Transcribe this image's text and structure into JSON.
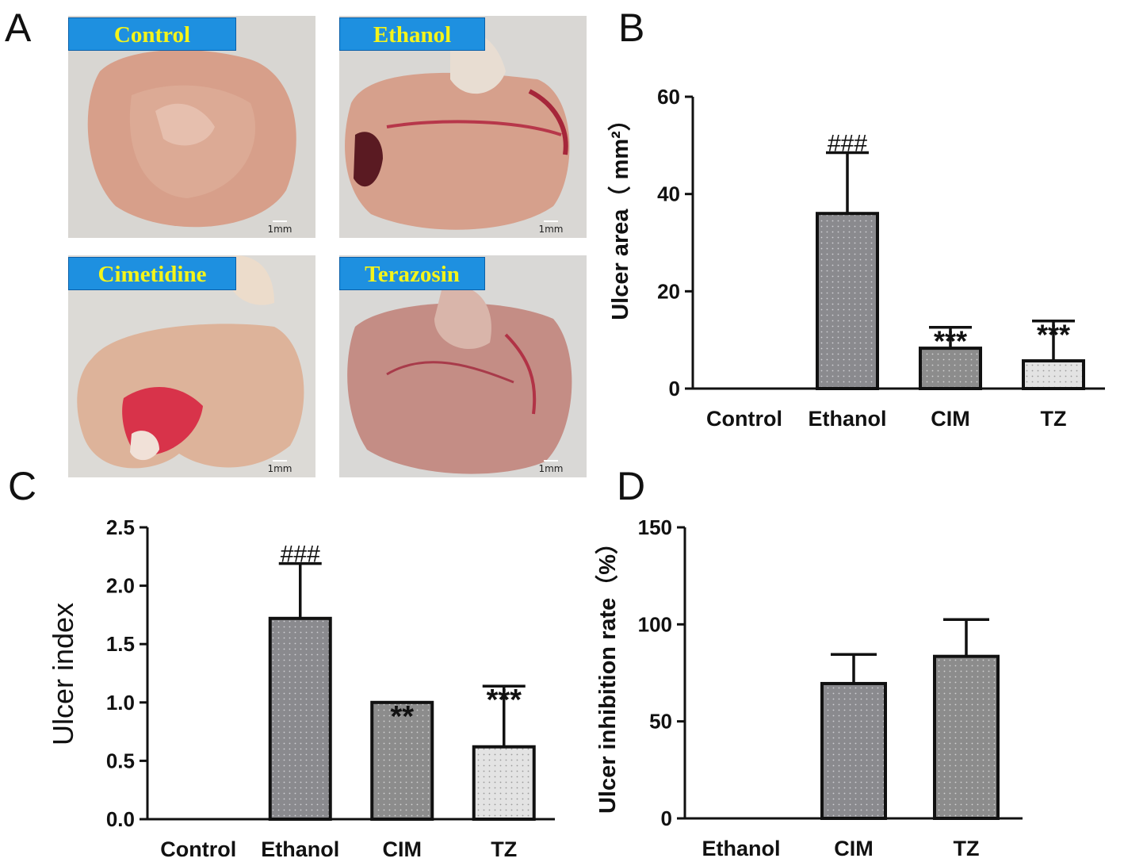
{
  "panels": {
    "a": "A",
    "b": "B",
    "c": "C",
    "d": "D"
  },
  "photos": [
    {
      "label": "Control",
      "scale": "1mm"
    },
    {
      "label": "Ethanol",
      "scale": "1mm"
    },
    {
      "label": "Cimetidine",
      "scale": "1mm"
    },
    {
      "label": "Terazosin",
      "scale": "1mm"
    }
  ],
  "colors": {
    "bar_dark": "#8a8a8e",
    "bar_mid": "#8c8c8c",
    "bar_light": "#e3e3e3",
    "axis": "#111111",
    "label_bg": "#1e90e0",
    "label_text": "#f4f41a"
  },
  "chart_data": [
    {
      "id": "B",
      "type": "bar",
      "title": "",
      "categories": [
        "Control",
        "Ethanol",
        "CIM",
        "TZ"
      ],
      "values": [
        0,
        36,
        8.3,
        5.7
      ],
      "errors": [
        0,
        12.5,
        4.3,
        8.2
      ],
      "annotations": [
        "",
        "###",
        "***",
        "***"
      ],
      "ylabel": "Ulcer area（ mm²）",
      "xlabel": "",
      "ylim": [
        0,
        60
      ],
      "yticks": [
        "0",
        "20",
        "40",
        "60"
      ],
      "tick_values": [
        0,
        20,
        40,
        60
      ]
    },
    {
      "id": "C",
      "type": "bar",
      "title": "",
      "categories": [
        "Control",
        "Ethanol",
        "CIM",
        "TZ"
      ],
      "values": [
        0,
        1.72,
        1.0,
        0.62
      ],
      "errors": [
        0,
        0.47,
        0,
        0.52
      ],
      "annotations": [
        "",
        "###",
        "**",
        "***"
      ],
      "ylabel": "Ulcer index",
      "xlabel": "",
      "ylim": [
        0,
        2.5
      ],
      "yticks": [
        "0.0",
        "0.5",
        "1.0",
        "1.5",
        "2.0",
        "2.5"
      ],
      "tick_values": [
        0,
        0.5,
        1,
        1.5,
        2,
        2.5
      ]
    },
    {
      "id": "D",
      "type": "bar",
      "title": "",
      "categories": [
        "Ethanol",
        "CIM",
        "TZ"
      ],
      "values": [
        0,
        69.5,
        83.5
      ],
      "errors": [
        0,
        15,
        19
      ],
      "annotations": [
        "",
        "",
        ""
      ],
      "ylabel": "Ulcer inhibition rate（%）",
      "xlabel": "",
      "ylim": [
        0,
        150
      ],
      "yticks": [
        "0",
        "50",
        "100",
        "150"
      ],
      "tick_values": [
        0,
        50,
        100,
        150
      ]
    }
  ]
}
